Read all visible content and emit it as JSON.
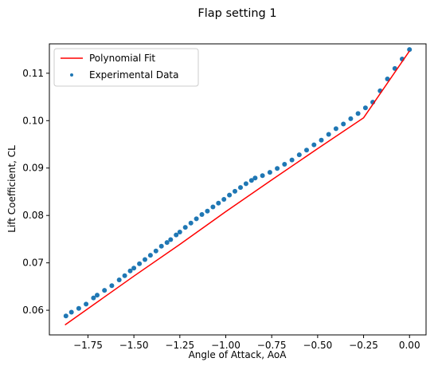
{
  "chart_data": {
    "type": "scatter",
    "title": "Flap setting 1",
    "xlabel": "Angle of Attack, AoA",
    "ylabel": "Lift Coefficient, CL",
    "xlim": [
      -1.96,
      0.09
    ],
    "ylim": [
      0.0548,
      0.1162
    ],
    "x_ticks": [
      -1.75,
      -1.5,
      -1.25,
      -1.0,
      -0.75,
      -0.5,
      -0.25,
      0.0
    ],
    "x_tick_labels": [
      "−1.75",
      "−1.50",
      "−1.25",
      "−1.00",
      "−0.75",
      "−0.50",
      "−0.25",
      "0.00"
    ],
    "y_ticks": [
      0.06,
      0.07,
      0.08,
      0.09,
      0.1,
      0.11
    ],
    "y_tick_labels": [
      "0.06",
      "0.07",
      "0.08",
      "0.09",
      "0.10",
      "0.11"
    ],
    "grid": false,
    "legend_position": "top-left",
    "series": [
      {
        "name": "Polynomial Fit",
        "kind": "line",
        "color": "#ff0000",
        "x": [
          -1.875,
          -1.5,
          -1.25,
          -1.0,
          -0.75,
          -0.5,
          -0.25,
          0.0
        ],
        "y": [
          0.0569,
          0.0672,
          0.0739,
          0.0808,
          0.0875,
          0.0941,
          0.1006,
          0.1147
        ]
      },
      {
        "name": "Experimental Data",
        "kind": "scatter",
        "color": "#1f77b4",
        "x": [
          -1.87,
          -1.84,
          -1.8,
          -1.76,
          -1.72,
          -1.7,
          -1.66,
          -1.62,
          -1.58,
          -1.55,
          -1.52,
          -1.5,
          -1.47,
          -1.44,
          -1.41,
          -1.38,
          -1.35,
          -1.32,
          -1.3,
          -1.27,
          -1.25,
          -1.22,
          -1.19,
          -1.16,
          -1.13,
          -1.1,
          -1.07,
          -1.04,
          -1.01,
          -0.98,
          -0.95,
          -0.92,
          -0.89,
          -0.86,
          -0.84,
          -0.8,
          -0.76,
          -0.72,
          -0.68,
          -0.64,
          -0.6,
          -0.56,
          -0.52,
          -0.48,
          -0.44,
          -0.4,
          -0.36,
          -0.32,
          -0.28,
          -0.24,
          -0.2,
          -0.16,
          -0.12,
          -0.08,
          -0.04,
          0.0
        ],
        "y": [
          0.0588,
          0.0596,
          0.0604,
          0.0613,
          0.0626,
          0.0632,
          0.0642,
          0.0652,
          0.0664,
          0.0673,
          0.0683,
          0.0689,
          0.0698,
          0.0707,
          0.0716,
          0.0725,
          0.0735,
          0.0743,
          0.0749,
          0.0759,
          0.0765,
          0.0775,
          0.0784,
          0.0793,
          0.0802,
          0.0809,
          0.0818,
          0.0826,
          0.0834,
          0.0843,
          0.0851,
          0.0859,
          0.0867,
          0.0874,
          0.0879,
          0.0884,
          0.0891,
          0.0899,
          0.0908,
          0.0917,
          0.0928,
          0.0938,
          0.0949,
          0.0959,
          0.0971,
          0.0983,
          0.0993,
          0.1004,
          0.1015,
          0.1027,
          0.1039,
          0.1063,
          0.1088,
          0.111,
          0.113,
          0.115
        ]
      }
    ]
  }
}
